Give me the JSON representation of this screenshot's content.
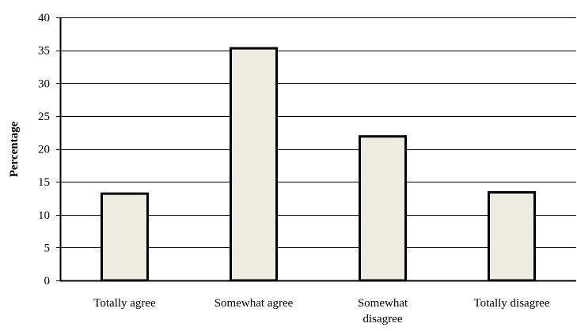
{
  "chart_data": {
    "type": "bar",
    "title": "",
    "xlabel": "",
    "ylabel": "Percentage",
    "categories": [
      [
        "Totally agree"
      ],
      [
        "Somewhat agree"
      ],
      [
        "Somewhat",
        "disagree"
      ],
      [
        "Totally disagree"
      ]
    ],
    "values": [
      13.2,
      35.3,
      21.9,
      13.4
    ],
    "ylim": [
      0,
      40
    ],
    "yticks": [
      0,
      5,
      10,
      15,
      20,
      25,
      30,
      35,
      40
    ],
    "grid": true,
    "legend": "none",
    "colors": {
      "bar_fill": "#eeebe0",
      "bar_stroke": "#000000",
      "grid": "#000000",
      "axis": "#000000"
    }
  }
}
